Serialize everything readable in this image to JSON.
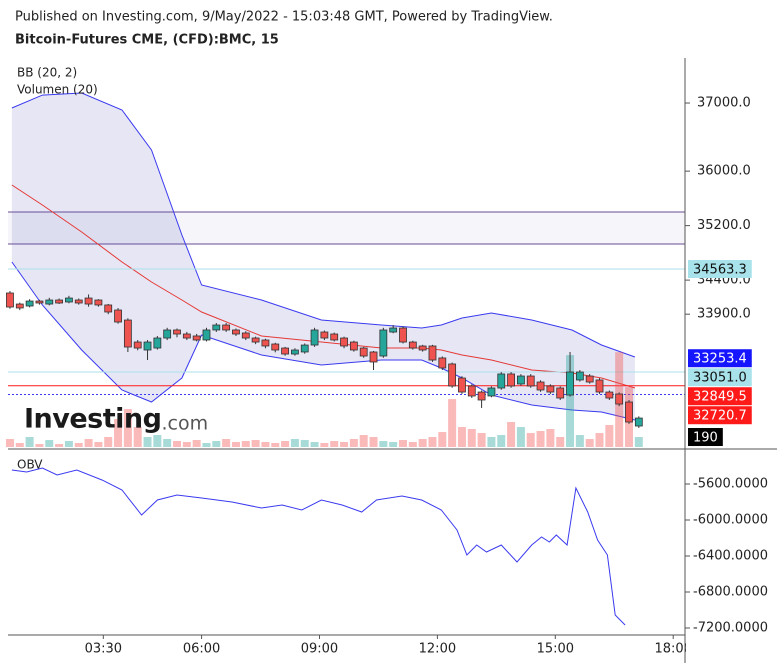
{
  "header": {
    "published": "Published on Investing.com, 9/May/2022 - 15:03:48 GMT, Powered by TradingView.",
    "symbol": "Bitcoin-Futures CME, (CFD):BMC, 15"
  },
  "watermark": {
    "brand": "Investing",
    "suffix": ".com"
  },
  "chart_data": [
    {
      "type": "candlestick",
      "up_color": "#26a69a",
      "down_color": "#ef5350",
      "xlim": [
        -0.2,
        68.7
      ],
      "ylim": [
        31950,
        37661
      ],
      "yticks": [
        {
          "value": 37000,
          "label": "37000.0"
        },
        {
          "value": 36000,
          "label": "36000.0"
        },
        {
          "value": 35200,
          "label": "35200.0"
        },
        {
          "value": 34400,
          "label": "34400.0"
        },
        {
          "value": 33900,
          "label": "33900.0"
        }
      ],
      "ohlc": [
        [
          34211,
          34240,
          33980,
          34005
        ],
        [
          34049,
          34070,
          33960,
          33991
        ],
        [
          34020,
          34120,
          34000,
          34093
        ],
        [
          34093,
          34110,
          34040,
          34064
        ],
        [
          34049,
          34140,
          34030,
          34108
        ],
        [
          34108,
          34130,
          34050,
          34064
        ],
        [
          34079,
          34170,
          34060,
          34137
        ],
        [
          34108,
          34130,
          34040,
          34064
        ],
        [
          34137,
          34190,
          34010,
          34049
        ],
        [
          34108,
          34120,
          34010,
          34035
        ],
        [
          34035,
          34050,
          33900,
          33932
        ],
        [
          33961,
          33990,
          33760,
          33785
        ],
        [
          33814,
          33840,
          33345,
          33418
        ],
        [
          33491,
          33520,
          33370,
          33403
        ],
        [
          33374,
          33520,
          33227,
          33491
        ],
        [
          33403,
          33580,
          33380,
          33550
        ],
        [
          33550,
          33700,
          33520,
          33668
        ],
        [
          33668,
          33690,
          33560,
          33609
        ],
        [
          33609,
          33640,
          33520,
          33550
        ],
        [
          33580,
          33610,
          33500,
          33521
        ],
        [
          33521,
          33700,
          33500,
          33668
        ],
        [
          33668,
          33770,
          33640,
          33741
        ],
        [
          33741,
          33770,
          33640,
          33668
        ],
        [
          33668,
          33690,
          33580,
          33609
        ],
        [
          33624,
          33650,
          33520,
          33550
        ],
        [
          33550,
          33570,
          33460,
          33491
        ],
        [
          33521,
          33540,
          33400,
          33433
        ],
        [
          33462,
          33480,
          33340,
          33374
        ],
        [
          33403,
          33420,
          33290,
          33315
        ],
        [
          33315,
          33400,
          33290,
          33374
        ],
        [
          33345,
          33470,
          33320,
          33447
        ],
        [
          33447,
          33700,
          33420,
          33668
        ],
        [
          33638,
          33660,
          33520,
          33550
        ],
        [
          33609,
          33630,
          33500,
          33521
        ],
        [
          33550,
          33570,
          33400,
          33433
        ],
        [
          33491,
          33510,
          33350,
          33374
        ],
        [
          33403,
          33420,
          33260,
          33286
        ],
        [
          33345,
          33360,
          33080,
          33198
        ],
        [
          33286,
          33700,
          33260,
          33668
        ],
        [
          33638,
          33740,
          33620,
          33697
        ],
        [
          33697,
          33720,
          33470,
          33491
        ],
        [
          33491,
          33510,
          33380,
          33403
        ],
        [
          33433,
          33450,
          33350,
          33374
        ],
        [
          33433,
          33450,
          33200,
          33227
        ],
        [
          33257,
          33280,
          33080,
          33110
        ],
        [
          33169,
          33190,
          32820,
          32846
        ],
        [
          32963,
          32990,
          32730,
          32757
        ],
        [
          32846,
          32870,
          32670,
          32699
        ],
        [
          32757,
          32780,
          32523,
          32640
        ],
        [
          32699,
          32840,
          32680,
          32816
        ],
        [
          32816,
          33050,
          32790,
          33022
        ],
        [
          33022,
          33050,
          32820,
          32846
        ],
        [
          32875,
          33020,
          32850,
          32992
        ],
        [
          32992,
          33020,
          32820,
          32846
        ],
        [
          32904,
          32930,
          32760,
          32787
        ],
        [
          32846,
          32870,
          32730,
          32757
        ],
        [
          32816,
          32840,
          32640,
          32669
        ],
        [
          32713,
          33345,
          32690,
          33051
        ],
        [
          32934,
          33080,
          32910,
          33051
        ],
        [
          32992,
          33020,
          32880,
          32904
        ],
        [
          32934,
          32960,
          32730,
          32757
        ],
        [
          32757,
          32780,
          32640,
          32669
        ],
        [
          32728,
          32750,
          32550,
          32581
        ],
        [
          32610,
          32640,
          32290,
          32317
        ],
        [
          32258,
          32400,
          32230,
          32375
        ]
      ],
      "zone": {
        "values": [
          35400,
          34930
        ],
        "line_color": "#6a4c93",
        "fill": "#f5f5fa"
      },
      "bands": {
        "label": "BB (20, 2)",
        "x": [
          0.2,
          3.3,
          7.3,
          11.4,
          14.4,
          17.5,
          19.5,
          25.6,
          31.7,
          37.8,
          41.9,
          43.9,
          46,
          49,
          53.1,
          57.2,
          60.2,
          63.6
        ],
        "upper": [
          36927,
          37117,
          37147,
          36897,
          36310,
          35062,
          34328,
          34108,
          33814,
          33741,
          33697,
          33741,
          33844,
          33917,
          33814,
          33668,
          33447,
          33271
        ],
        "middle": [
          35796,
          35503,
          35106,
          34666,
          34372,
          34108,
          33932,
          33580,
          33491,
          33403,
          33403,
          33374,
          33301,
          33227,
          33080,
          33036,
          32963,
          32816
        ],
        "lower": [
          34666,
          34035,
          33374,
          32787,
          32611,
          32963,
          33594,
          33301,
          33154,
          33227,
          33227,
          33110,
          32963,
          32713,
          32567,
          32493,
          32464,
          32346
        ],
        "band_color": "#3a3af0",
        "middle_color": "#e53935",
        "fill": "rgba(90,90,190,0.15)"
      },
      "volume": {
        "label": "Volumen (20)",
        "vlim": [
          0,
          7400
        ],
        "up_color": "rgba(38,166,154,0.4)",
        "down_color": "rgba(239,83,80,0.4)",
        "values": [
          152,
          76,
          190,
          57,
          133,
          57,
          114,
          76,
          152,
          95,
          190,
          532,
          722,
          380,
          190,
          228,
          152,
          114,
          95,
          133,
          76,
          114,
          152,
          95,
          114,
          133,
          95,
          76,
          114,
          152,
          133,
          95,
          76,
          114,
          95,
          152,
          228,
          190,
          114,
          95,
          133,
          95,
          152,
          190,
          285,
          912,
          380,
          342,
          266,
          190,
          228,
          475,
          380,
          266,
          304,
          342,
          190,
          1748,
          228,
          152,
          266,
          418,
          1805,
          1140,
          190
        ]
      },
      "price_labels": [
        {
          "value": 34563.3,
          "label": "34563.3",
          "color": "#a8e2ea",
          "text_color": "#111",
          "line": "solid",
          "scale": "price"
        },
        {
          "value": 33253.4,
          "label": "33253.4",
          "color": "#1515ff",
          "text_color": "#fff",
          "line": "none",
          "scale": "price"
        },
        {
          "value": 33051,
          "label": "33051.0",
          "color": "#a8e2ea",
          "text_color": "#111",
          "line": "solid",
          "scale": "price"
        },
        {
          "value": 32849.5,
          "label": "32849.5",
          "color": "#ff1a1a",
          "text_color": "#fff",
          "line": "solid",
          "scale": "price"
        },
        {
          "value": 32720.7,
          "label": "32720.7",
          "color": "#ff1a1a",
          "text_color": "#fff",
          "line": "dotted",
          "scale": "price"
        },
        {
          "value": 190,
          "label": "190",
          "color": "#000",
          "text_color": "#fff",
          "line": "none",
          "scale": "volume"
        }
      ]
    },
    {
      "type": "line",
      "title": "OBV",
      "color": "#3a3af0",
      "xlim": [
        -0.2,
        68.7
      ],
      "ylim": [
        -7278,
        -5222
      ],
      "yticks": [
        {
          "value": -5600,
          "label": "-5600.0000"
        },
        {
          "value": -6000,
          "label": "-6000.0000"
        },
        {
          "value": -6400,
          "label": "-6400.0000"
        },
        {
          "value": -6800,
          "label": "-6800.0000"
        },
        {
          "value": -7200,
          "label": "-7200.0000"
        }
      ],
      "xticks": [
        {
          "value": 9.5,
          "label": "03:30"
        },
        {
          "value": 19.5,
          "label": "06:00"
        },
        {
          "value": 31.5,
          "label": "09:00"
        },
        {
          "value": 43.5,
          "label": "12:00"
        },
        {
          "value": 55.5,
          "label": "15:00"
        },
        {
          "value": 67.5,
          "label": "18:00"
        }
      ],
      "x": [
        0.2,
        1.7,
        3.3,
        4.8,
        6.8,
        9.4,
        11.4,
        13.4,
        15,
        17,
        19.5,
        22.6,
        25.6,
        27.7,
        29.7,
        31.7,
        33.8,
        35.8,
        37.3,
        39.9,
        41.9,
        43.9,
        45.5,
        46.5,
        47.5,
        48.5,
        50,
        51.6,
        53.1,
        54.1,
        54.9,
        55.6,
        56.7,
        57.6,
        58.8,
        59.8,
        60.8,
        61.6,
        62.6
      ],
      "values": [
        -5444,
        -5467,
        -5422,
        -5500,
        -5444,
        -5556,
        -5667,
        -5944,
        -5778,
        -5722,
        -5756,
        -5800,
        -5867,
        -5833,
        -5889,
        -5778,
        -5833,
        -5911,
        -5778,
        -5733,
        -5778,
        -5889,
        -6111,
        -6389,
        -6278,
        -6356,
        -6278,
        -6467,
        -6278,
        -6189,
        -6244,
        -6167,
        -6278,
        -5644,
        -5911,
        -6222,
        -6389,
        -7056,
        -7167
      ]
    }
  ]
}
